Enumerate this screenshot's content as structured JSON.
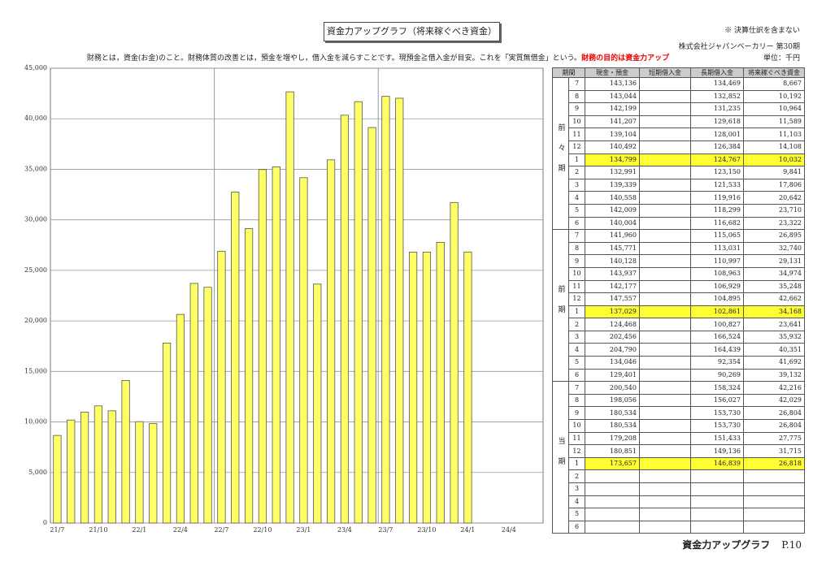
{
  "header": {
    "title": "資金力アップグラフ（将来稼ぐべき資金）",
    "note": "※ 決算仕訳を含まない",
    "company": "株式会社ジャパンベーカリー 第30期",
    "description": "財務とは，資金(お金)のこと。財務体質の改善とは，預金を増やし，借入金を減らすことです。現預金≧借入金が目安。これを「実質無借金」という。",
    "emphasis": "財務の目的は資金力アップ",
    "unit": "単位：千円"
  },
  "chart_data": {
    "type": "bar",
    "categories": [
      "21/7",
      null,
      null,
      "21/10",
      null,
      null,
      "22/1",
      null,
      null,
      "22/4",
      null,
      null,
      "22/7",
      null,
      null,
      "22/10",
      null,
      null,
      "23/1",
      null,
      null,
      "23/4",
      null,
      null,
      "23/7",
      null,
      null,
      "23/10",
      null,
      null,
      "24/1",
      null,
      null,
      "24/4",
      null,
      null
    ],
    "values": [
      8667,
      10192,
      10964,
      11589,
      11103,
      14108,
      10032,
      9841,
      17806,
      20642,
      23710,
      23322,
      26895,
      32740,
      29131,
      34974,
      35248,
      42662,
      34168,
      23641,
      35932,
      40351,
      41692,
      39132,
      42216,
      42029,
      26804,
      26804,
      27775,
      31715,
      26818,
      null,
      null,
      null,
      null,
      null
    ],
    "color": "#ffff66",
    "ylim": [
      0,
      45000
    ],
    "yticks": [
      0,
      {
        "value": 5000,
        "label": "5,000"
      },
      {
        "value": 10000,
        "label": "10,000"
      },
      {
        "value": 15000,
        "label": "15,000"
      },
      {
        "value": 20000,
        "label": "20,000"
      },
      {
        "value": 25000,
        "label": "25,000"
      },
      {
        "value": 30000,
        "label": "30,000"
      },
      {
        "value": 35000,
        "label": "35,000"
      },
      {
        "value": 40000,
        "label": "40,000"
      },
      {
        "value": 45000,
        "label": "45,000"
      }
    ],
    "grid": true
  },
  "table": {
    "columns": [
      "期間",
      "現金・預金",
      "短期借入金",
      "長期借入金",
      "将来稼ぐべき資金"
    ],
    "groups": [
      {
        "label": "前々期",
        "rows": [
          [
            "7",
            "143,136",
            null,
            "134,469",
            "8,667"
          ],
          [
            "8",
            "143,044",
            null,
            "132,852",
            "10,192"
          ],
          [
            "9",
            "142,199",
            null,
            "131,235",
            "10,964"
          ],
          [
            "10",
            "141,207",
            null,
            "129,618",
            "11,589"
          ],
          [
            "11",
            "139,104",
            null,
            "128,001",
            "11,103"
          ],
          [
            "12",
            "140,492",
            null,
            "126,384",
            "14,108"
          ],
          [
            "1",
            "134,799",
            null,
            "124,767",
            "10,032"
          ],
          [
            "2",
            "132,991",
            null,
            "123,150",
            "9,841"
          ],
          [
            "3",
            "139,339",
            null,
            "121,533",
            "17,806"
          ],
          [
            "4",
            "140,558",
            null,
            "119,916",
            "20,642"
          ],
          [
            "5",
            "142,009",
            null,
            "118,299",
            "23,710"
          ],
          [
            "6",
            "140,004",
            null,
            "116,682",
            "23,322"
          ]
        ]
      },
      {
        "label": "前期",
        "rows": [
          [
            "7",
            "141,960",
            null,
            "115,065",
            "26,895"
          ],
          [
            "8",
            "145,771",
            null,
            "113,031",
            "32,740"
          ],
          [
            "9",
            "140,128",
            null,
            "110,997",
            "29,131"
          ],
          [
            "10",
            "143,937",
            null,
            "108,963",
            "34,974"
          ],
          [
            "11",
            "142,177",
            null,
            "106,929",
            "35,248"
          ],
          [
            "12",
            "147,557",
            null,
            "104,895",
            "42,662"
          ],
          [
            "1",
            "137,029",
            null,
            "102,861",
            "34,168"
          ],
          [
            "2",
            "124,468",
            null,
            "100,827",
            "23,641"
          ],
          [
            "3",
            "202,456",
            null,
            "166,524",
            "35,932"
          ],
          [
            "4",
            "204,790",
            null,
            "164,439",
            "40,351"
          ],
          [
            "5",
            "134,046",
            null,
            "92,354",
            "41,692"
          ],
          [
            "6",
            "129,401",
            null,
            "90,269",
            "39,132"
          ]
        ]
      },
      {
        "label": "当期",
        "rows": [
          [
            "7",
            "200,540",
            null,
            "158,324",
            "42,216"
          ],
          [
            "8",
            "198,056",
            null,
            "156,027",
            "42,029"
          ],
          [
            "9",
            "180,534",
            null,
            "153,730",
            "26,804"
          ],
          [
            "10",
            "180,534",
            null,
            "153,730",
            "26,804"
          ],
          [
            "11",
            "179,208",
            null,
            "151,433",
            "27,775"
          ],
          [
            "12",
            "180,851",
            null,
            "149,136",
            "31,715"
          ],
          [
            "1",
            "173,657",
            null,
            "146,839",
            "26,818"
          ],
          [
            "2",
            null,
            null,
            null,
            null
          ],
          [
            "3",
            null,
            null,
            null,
            null
          ],
          [
            "4",
            null,
            null,
            null,
            null
          ],
          [
            "5",
            null,
            null,
            null,
            null
          ],
          [
            "6",
            null,
            null,
            null,
            null
          ]
        ]
      }
    ]
  },
  "footer": {
    "title": "資金力アップグラフ",
    "page": "P.10"
  }
}
